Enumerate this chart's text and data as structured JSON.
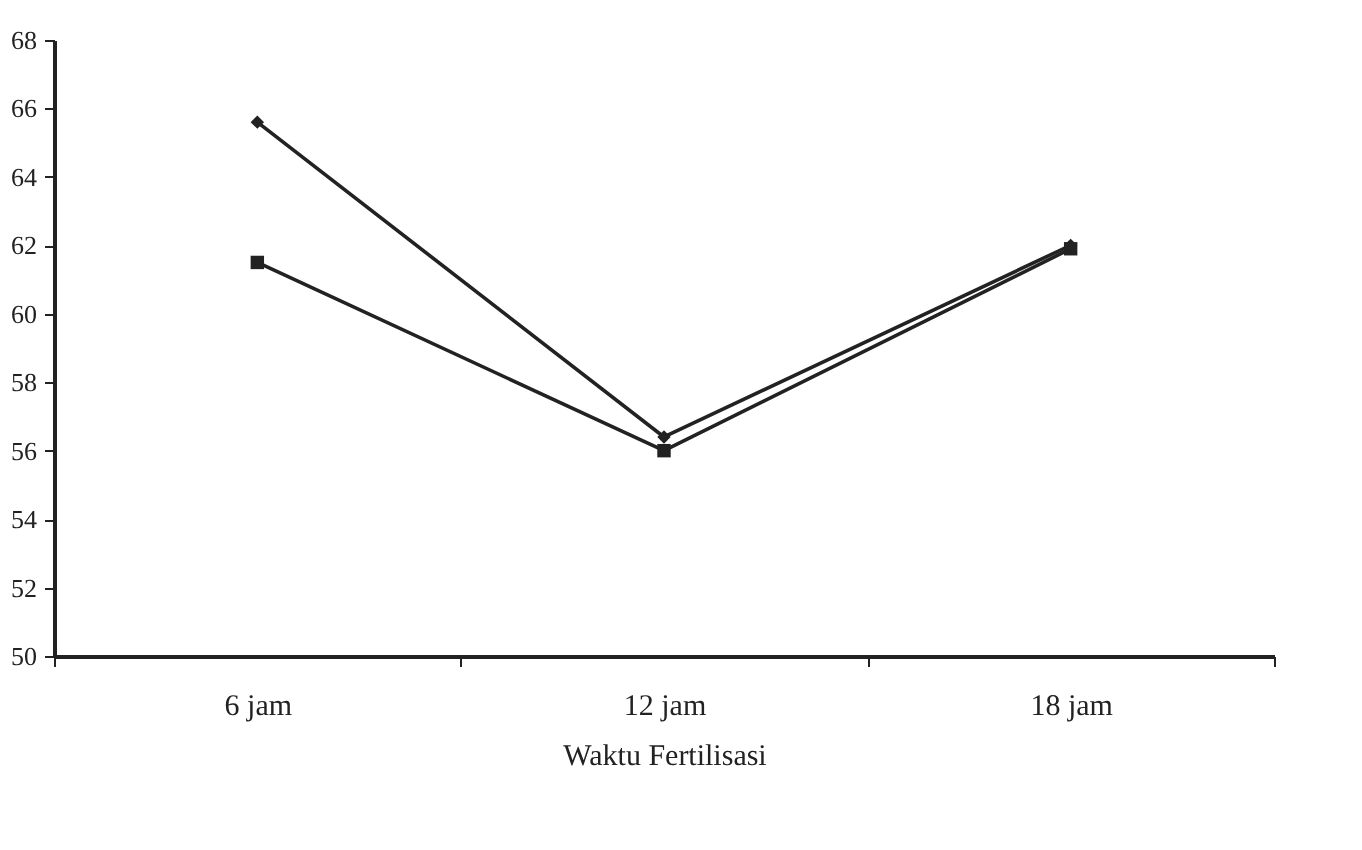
{
  "chart_data": {
    "type": "line",
    "xlabel": "Waktu Fertilisasi",
    "categories": [
      "6 jam",
      "12 jam",
      "18 jam"
    ],
    "series": [
      {
        "color": "#222222",
        "marker": "diamond",
        "values": [
          65.6,
          56.4,
          62.0
        ]
      },
      {
        "color": "#222222",
        "marker": "square",
        "values": [
          61.5,
          56.0,
          61.9
        ]
      }
    ],
    "ylim": [
      50,
      68
    ],
    "yticks": [
      50,
      52,
      54,
      56,
      58,
      60,
      62,
      64,
      66,
      68
    ],
    "grid": false
  }
}
